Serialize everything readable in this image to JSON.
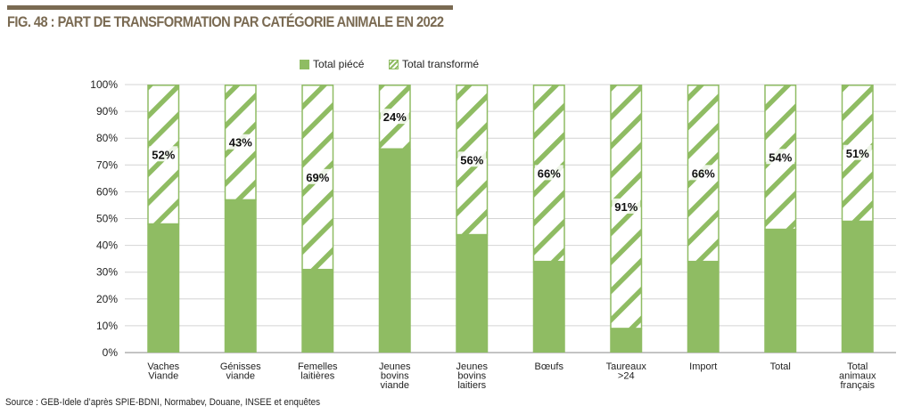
{
  "title": "FIG. 48 : PART DE TRANSFORMATION PAR CATÉGORIE ANIMALE EN 2022",
  "source": "Source : GEB-Idele d’après SPIE-BDNI, Normabev, Douane, INSEE et enquêtes",
  "colors": {
    "solid": "#8fbc63",
    "hatch": "#8fbc63",
    "title": "#7a6a52"
  },
  "chart_data": {
    "type": "bar",
    "stacked": true,
    "categories": [
      [
        "Vaches",
        "Viande"
      ],
      [
        "Génisses",
        "viande"
      ],
      [
        "Femelles",
        "laitières"
      ],
      [
        "Jeunes",
        "bovins",
        "viande"
      ],
      [
        "Jeunes",
        "bovins",
        "laitiers"
      ],
      [
        "Bœufs"
      ],
      [
        "Taureaux",
        ">24"
      ],
      [
        "Import"
      ],
      [
        "Total"
      ],
      [
        "Total",
        "animaux",
        "français"
      ]
    ],
    "series": [
      {
        "name": "Total piécé",
        "values": [
          48,
          57,
          31,
          76,
          44,
          34,
          9,
          34,
          46,
          49
        ]
      },
      {
        "name": "Total transformé",
        "values": [
          52,
          43,
          69,
          24,
          56,
          66,
          91,
          66,
          54,
          51
        ]
      }
    ],
    "data_labels": [
      "52%",
      "43%",
      "69%",
      "24%",
      "56%",
      "66%",
      "91%",
      "66%",
      "54%",
      "51%"
    ],
    "yticks": [
      "0%",
      "10%",
      "20%",
      "30%",
      "40%",
      "50%",
      "60%",
      "70%",
      "80%",
      "90%",
      "100%"
    ],
    "ylim": [
      0,
      100
    ],
    "grid": true,
    "legend": "top-center"
  }
}
